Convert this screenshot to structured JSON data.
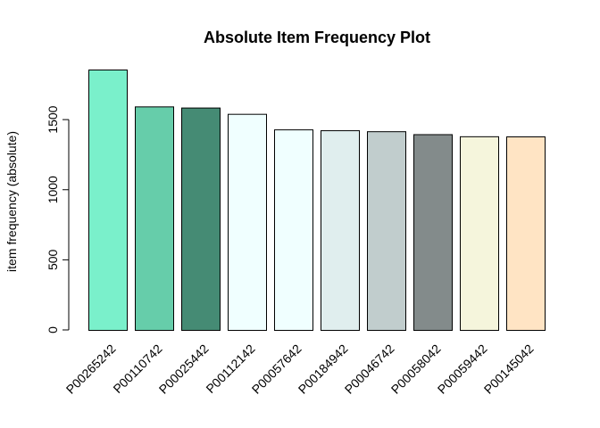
{
  "chart_data": {
    "type": "bar",
    "title": "Absolute Item Frequency Plot",
    "xlabel": "",
    "ylabel": "item frequency (absolute)",
    "categories": [
      "P00265242",
      "P00110742",
      "P00025442",
      "P00112142",
      "P00057642",
      "P00184942",
      "P00046742",
      "P00058042",
      "P00059442",
      "P00145042"
    ],
    "values": [
      1857,
      1594,
      1586,
      1541,
      1430,
      1424,
      1417,
      1396,
      1381,
      1380
    ],
    "colors": [
      "#7AF0CB",
      "#66CDAA",
      "#458B74",
      "#F0FFFF",
      "#F0FFFF",
      "#E0EEEE",
      "#C1CDCD",
      "#838B8B",
      "#F5F5DC",
      "#FFE4C4"
    ],
    "y_ticks": [
      0,
      500,
      1000,
      1500
    ],
    "ylim": [
      0,
      1857
    ],
    "grid": false,
    "legend": "none"
  }
}
